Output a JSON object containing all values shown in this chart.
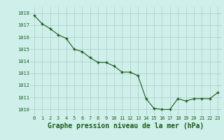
{
  "x": [
    0,
    1,
    2,
    3,
    4,
    5,
    6,
    7,
    8,
    9,
    10,
    11,
    12,
    13,
    14,
    15,
    16,
    17,
    18,
    19,
    20,
    21,
    22,
    23
  ],
  "y": [
    1017.8,
    1017.1,
    1016.7,
    1016.2,
    1015.9,
    1015.0,
    1014.8,
    1014.3,
    1013.9,
    1013.9,
    1013.6,
    1013.1,
    1013.1,
    1012.8,
    1010.9,
    1010.1,
    1010.0,
    1010.0,
    1010.9,
    1010.7,
    1010.9,
    1010.9,
    1010.9,
    1011.4
  ],
  "line_color": "#1a5c1a",
  "marker_color": "#1a5c1a",
  "bg_color": "#cff0ea",
  "grid_color": "#aaccc6",
  "xlabel": "Graphe pression niveau de la mer (hPa)",
  "xlabel_color": "#1a5c1a",
  "tick_color": "#1a5c1a",
  "ylim": [
    1009.5,
    1018.5
  ],
  "yticks": [
    1010,
    1011,
    1012,
    1013,
    1014,
    1015,
    1016,
    1017,
    1018
  ],
  "xticks": [
    0,
    1,
    2,
    3,
    4,
    5,
    6,
    7,
    8,
    9,
    10,
    11,
    12,
    13,
    14,
    15,
    16,
    17,
    18,
    19,
    20,
    21,
    22,
    23
  ],
  "tick_fontsize": 5.0,
  "xlabel_fontsize": 7.0
}
